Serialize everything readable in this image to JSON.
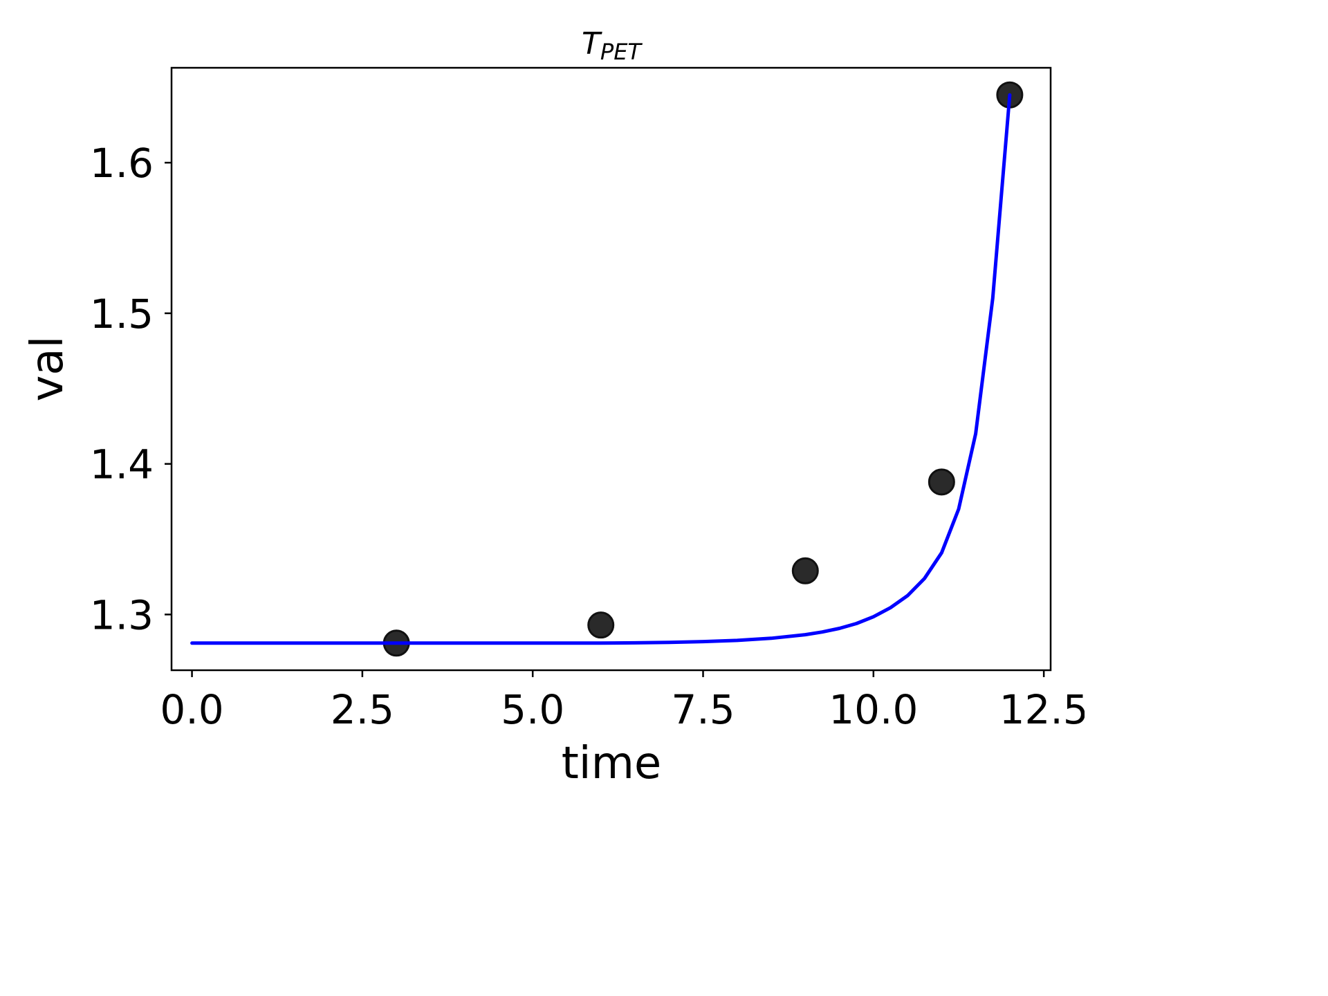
{
  "chart_data": {
    "type": "scatter",
    "title_main": "T",
    "title_sub": "PET",
    "xlabel": "time",
    "ylabel": "val",
    "xlim": [
      -0.3,
      12.6
    ],
    "ylim": [
      1.263,
      1.663
    ],
    "xticks": [
      0.0,
      2.5,
      5.0,
      7.5,
      10.0,
      12.5
    ],
    "xtick_labels": [
      "0.0",
      "2.5",
      "5.0",
      "7.5",
      "10.0",
      "12.5"
    ],
    "yticks": [
      1.3,
      1.4,
      1.5,
      1.6
    ],
    "ytick_labels": [
      "1.3",
      "1.4",
      "1.5",
      "1.6"
    ],
    "grid": false,
    "series": [
      {
        "kind": "points",
        "color": "#2a2a2a",
        "x": [
          3,
          6,
          9,
          11,
          12
        ],
        "y": [
          1.281,
          1.293,
          1.329,
          1.388,
          1.645
        ]
      },
      {
        "kind": "curve",
        "color": "#0000ff",
        "x": [
          0,
          1,
          2,
          3,
          4,
          5,
          6,
          6.5,
          7,
          7.5,
          8,
          8.5,
          9,
          9.25,
          9.5,
          9.75,
          10,
          10.25,
          10.5,
          10.75,
          11,
          11.25,
          11.5,
          11.75,
          12
        ],
        "y": [
          1.281,
          1.281,
          1.281,
          1.281,
          1.281,
          1.281,
          1.281,
          1.2812,
          1.2815,
          1.282,
          1.2828,
          1.2842,
          1.2866,
          1.2884,
          1.2908,
          1.294,
          1.2985,
          1.3045,
          1.3125,
          1.324,
          1.341,
          1.37,
          1.42,
          1.51,
          1.645
        ]
      }
    ]
  }
}
